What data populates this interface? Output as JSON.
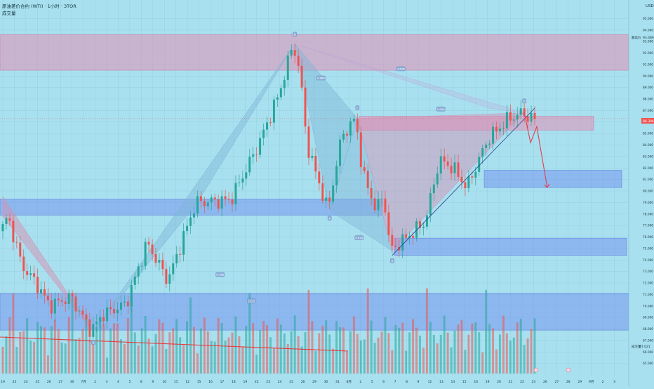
{
  "header": {
    "title": "原油差价合约 (WTI) · 1小时 · 3TOR",
    "volume_label": "成交量"
  },
  "top_right_label": "USD",
  "right_axis_badges": {
    "high_tag": "最高价",
    "high_value": "93.489",
    "current_value": "86.306",
    "volume_tag": "成交量",
    "volume_value": "67.021"
  },
  "pattern_labels": [
    {
      "id": "A-top",
      "text": "B"
    },
    {
      "id": "ratio-0886",
      "text": "0.886"
    },
    {
      "id": "C-label",
      "text": "C"
    },
    {
      "id": "ratio-1618-top",
      "text": "1.618"
    },
    {
      "id": "D-top",
      "text": "D"
    },
    {
      "id": "ratio-1000",
      "text": "1.000"
    },
    {
      "id": "X-mid",
      "text": "X"
    },
    {
      "id": "ratio-0618",
      "text": "0.618"
    },
    {
      "id": "A-low",
      "text": "A"
    },
    {
      "id": "ratio-0786",
      "text": "0.786"
    },
    {
      "id": "ratio-1272",
      "text": "1.272"
    },
    {
      "id": "X-low",
      "text": "X"
    }
  ],
  "colors": {
    "background": "#a8e0ef",
    "up_candle": "#26a69a",
    "down_candle": "#ef5350",
    "supply_zone": "#e48fb4",
    "demand_zone": "#6f8ff0",
    "pattern_fill": "#7fb5d8",
    "trendline": "#2f3f8f",
    "projection_arrow": "#e23f4f",
    "volume_trend": "#e23a3a"
  },
  "chart_data": {
    "type": "candlestick",
    "title": "原油差价合约 (WTI) · 1小时 · 3TOR",
    "yaxis": {
      "min": 64,
      "max": 96,
      "ticks": [
        "95.000",
        "94.000",
        "93.000",
        "92.000",
        "91.000",
        "90.000",
        "89.000",
        "88.000",
        "87.000",
        "86.000",
        "85.000",
        "84.000",
        "83.000",
        "82.000",
        "81.000",
        "80.000",
        "79.000",
        "78.000",
        "77.000",
        "76.000",
        "75.000",
        "74.000",
        "73.000",
        "72.000",
        "71.000",
        "70.000",
        "69.000",
        "68.000",
        "67.000",
        "66.000",
        "65.000"
      ],
      "tick_values": [
        95,
        94,
        93,
        92,
        91,
        90,
        89,
        88,
        87,
        86,
        85,
        84,
        83,
        82,
        81,
        80,
        79,
        78,
        77,
        76,
        75,
        74,
        73,
        72,
        71,
        70,
        69,
        68,
        67,
        66,
        65
      ]
    },
    "xaxis": {
      "ticks": [
        "19",
        "23",
        "24",
        "25",
        "26",
        "27",
        "30",
        "7月",
        "2",
        "3",
        "4",
        "5",
        "8",
        "9",
        "10",
        "11",
        "12",
        "15",
        "16",
        "17",
        "18",
        "19",
        "22",
        "23",
        "24",
        "25",
        "26",
        "29",
        "30",
        "31",
        "8月",
        "2",
        "5",
        "6",
        "7",
        "8",
        "9",
        "12",
        "13",
        "14",
        "15",
        "16",
        "19",
        "20",
        "21",
        "22",
        "23",
        "26",
        "27",
        "28",
        "29",
        "9月",
        "2",
        "3"
      ]
    },
    "price_path": [
      {
        "t": 0,
        "v": 76.5
      },
      {
        "t": 2,
        "v": 77.8
      },
      {
        "t": 6,
        "v": 73.5
      },
      {
        "t": 10,
        "v": 72.0
      },
      {
        "t": 14,
        "v": 70.0
      },
      {
        "t": 20,
        "v": 70.8
      },
      {
        "t": 26,
        "v": 67.8
      },
      {
        "t": 29,
        "v": 69.2
      },
      {
        "t": 36,
        "v": 70.2
      },
      {
        "t": 42,
        "v": 75.5
      },
      {
        "t": 48,
        "v": 72.2
      },
      {
        "t": 56,
        "v": 79.0
      },
      {
        "t": 66,
        "v": 79.2
      },
      {
        "t": 74,
        "v": 84.0
      },
      {
        "t": 80,
        "v": 88.5
      },
      {
        "t": 84,
        "v": 92.8
      },
      {
        "t": 86,
        "v": 90.2
      },
      {
        "t": 88,
        "v": 84.0
      },
      {
        "t": 94,
        "v": 78.3
      },
      {
        "t": 98,
        "v": 84.8
      },
      {
        "t": 102,
        "v": 86.3
      },
      {
        "t": 104,
        "v": 81.5
      },
      {
        "t": 108,
        "v": 78.3
      },
      {
        "t": 110,
        "v": 79.8
      },
      {
        "t": 112,
        "v": 74.8
      },
      {
        "t": 116,
        "v": 75.8
      },
      {
        "t": 122,
        "v": 77.3
      },
      {
        "t": 126,
        "v": 82.7
      },
      {
        "t": 130,
        "v": 82.0
      },
      {
        "t": 134,
        "v": 80.3
      },
      {
        "t": 140,
        "v": 84.5
      },
      {
        "t": 146,
        "v": 86.3
      },
      {
        "t": 150,
        "v": 86.8
      },
      {
        "t": 153,
        "v": 86.2
      }
    ],
    "zones": [
      {
        "name": "supply-zone-top",
        "from": 90.5,
        "to": 93.6
      },
      {
        "name": "supply-zone-mid",
        "from": 85.3,
        "to": 86.5
      },
      {
        "name": "demand-zone-1",
        "from": 80.3,
        "to": 81.8
      },
      {
        "name": "demand-zone-2",
        "from": 77.9,
        "to": 79.3
      },
      {
        "name": "demand-zone-3",
        "from": 74.4,
        "to": 75.9
      },
      {
        "name": "demand-zone-4",
        "from": 67.9,
        "to": 71.1
      }
    ],
    "projection": [
      86.8,
      84.2,
      85.6,
      80.3
    ],
    "legend": "none",
    "grid": true
  }
}
